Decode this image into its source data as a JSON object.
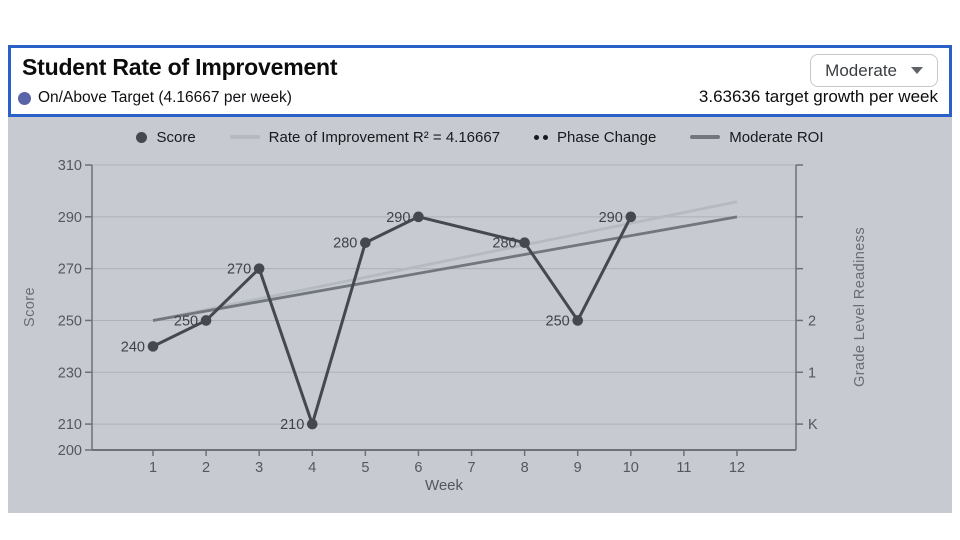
{
  "header": {
    "title": "Student Rate of Improvement",
    "status_label": "On/Above Target (4.16667 per week)",
    "status_dot_color": "#5a64a9",
    "dropdown_value": "Moderate",
    "target_growth_label": "3.63636 target growth per week",
    "border_color": "#2a60c8"
  },
  "legend": {
    "items": [
      {
        "label": "Score",
        "swatch": "dot",
        "color": "#45484f"
      },
      {
        "label": "Rate of Improvement R² = 4.16667",
        "swatch": "line",
        "color": "#b5b9c0"
      },
      {
        "label": "Phase Change",
        "swatch": "double-dot",
        "color": "#17191d"
      },
      {
        "label": "Moderate ROI",
        "swatch": "line",
        "color": "#72767d"
      }
    ]
  },
  "chart_data": {
    "type": "line",
    "xlabel": "Week",
    "ylabel_left": "Score",
    "ylabel_right": "Grade Level Readiness",
    "xlim": [
      1,
      12
    ],
    "ylim": [
      200,
      310
    ],
    "x_ticks": [
      1,
      2,
      3,
      4,
      5,
      6,
      7,
      8,
      9,
      10,
      11,
      12
    ],
    "y_ticks_left": [
      200,
      210,
      230,
      250,
      270,
      290,
      310
    ],
    "y_gridlines": [
      210,
      230,
      250,
      270,
      290,
      310
    ],
    "right_axis_ticks": [
      210,
      230,
      250,
      270,
      290,
      310
    ],
    "right_axis_labels": [
      {
        "value": 210,
        "label": "K"
      },
      {
        "value": 230,
        "label": "1"
      },
      {
        "value": 250,
        "label": "2"
      }
    ],
    "series": [
      {
        "name": "Score",
        "kind": "points-line",
        "color": "#45484f",
        "point_labels": true,
        "x": [
          1,
          2,
          3,
          4,
          5,
          6,
          8,
          9,
          10
        ],
        "y": [
          240,
          250,
          270,
          210,
          280,
          290,
          280,
          250,
          290
        ]
      },
      {
        "name": "Rate of Improvement R² = 4.16667",
        "kind": "line",
        "color": "#b5b9c0",
        "x": [
          1,
          12
        ],
        "y": [
          250,
          295.83
        ]
      },
      {
        "name": "Moderate ROI",
        "kind": "line",
        "color": "#72767d",
        "x": [
          1,
          12
        ],
        "y": [
          250,
          290
        ]
      }
    ],
    "grid": true,
    "legend_position": "top",
    "colors": {
      "panel_bg": "#c7cad1",
      "gridline": "#aeb1b9",
      "axis": "#6d7178",
      "tick_text": "#54575c",
      "point_label_text": "#3f4248",
      "axis_title_text": "#696d74"
    }
  }
}
